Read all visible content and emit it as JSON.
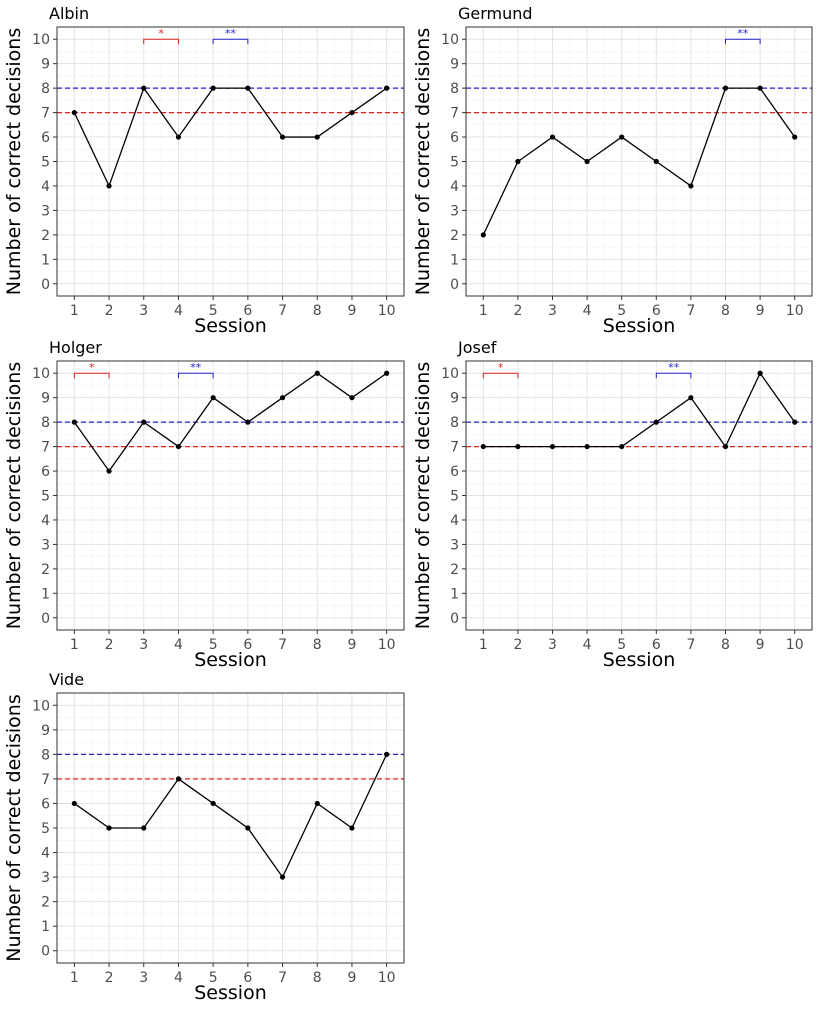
{
  "chart_data": [
    {
      "type": "line",
      "title": "Albin",
      "xlabel": "Session",
      "ylabel": "Number of correct decisions",
      "x": [
        1,
        2,
        3,
        4,
        5,
        6,
        7,
        8,
        9,
        10
      ],
      "values": [
        7,
        4,
        8,
        6,
        8,
        8,
        6,
        6,
        7,
        8
      ],
      "xlim": [
        0.5,
        10.5
      ],
      "ylim": [
        0,
        10
      ],
      "reference_lines": [
        {
          "value": 8,
          "color": "#2222cc"
        },
        {
          "value": 7,
          "color": "#dd2222"
        }
      ],
      "significance": [
        {
          "from": 3,
          "to": 4,
          "label": "*",
          "color": "#dd2222"
        },
        {
          "from": 5,
          "to": 6,
          "label": "**",
          "color": "#2222cc"
        }
      ],
      "grid": true
    },
    {
      "type": "line",
      "title": "Germund",
      "xlabel": "Session",
      "ylabel": "Number of correct decisions",
      "x": [
        1,
        2,
        3,
        4,
        5,
        6,
        7,
        8,
        9,
        10
      ],
      "values": [
        2,
        5,
        6,
        5,
        6,
        5,
        4,
        8,
        8,
        6
      ],
      "xlim": [
        0.5,
        10.5
      ],
      "ylim": [
        0,
        10
      ],
      "reference_lines": [
        {
          "value": 8,
          "color": "#2222cc"
        },
        {
          "value": 7,
          "color": "#dd2222"
        }
      ],
      "significance": [
        {
          "from": 8,
          "to": 9,
          "label": "**",
          "color": "#2222cc"
        }
      ],
      "grid": true
    },
    {
      "type": "line",
      "title": "Holger",
      "xlabel": "Session",
      "ylabel": "Number of correct decisions",
      "x": [
        1,
        2,
        3,
        4,
        5,
        6,
        7,
        8,
        9,
        10
      ],
      "values": [
        8,
        6,
        8,
        7,
        9,
        8,
        9,
        10,
        9,
        10
      ],
      "xlim": [
        0.5,
        10.5
      ],
      "ylim": [
        0,
        10
      ],
      "reference_lines": [
        {
          "value": 8,
          "color": "#2222cc"
        },
        {
          "value": 7,
          "color": "#dd2222"
        }
      ],
      "significance": [
        {
          "from": 1,
          "to": 2,
          "label": "*",
          "color": "#dd2222"
        },
        {
          "from": 4,
          "to": 5,
          "label": "**",
          "color": "#2222cc"
        }
      ],
      "grid": true
    },
    {
      "type": "line",
      "title": "Josef",
      "xlabel": "Session",
      "ylabel": "Number of correct decisions",
      "x": [
        1,
        2,
        3,
        4,
        5,
        6,
        7,
        8,
        9,
        10
      ],
      "values": [
        7,
        7,
        7,
        7,
        7,
        8,
        9,
        7,
        10,
        8
      ],
      "xlim": [
        0.5,
        10.5
      ],
      "ylim": [
        0,
        10
      ],
      "reference_lines": [
        {
          "value": 8,
          "color": "#2222cc"
        },
        {
          "value": 7,
          "color": "#dd2222"
        }
      ],
      "significance": [
        {
          "from": 1,
          "to": 2,
          "label": "*",
          "color": "#dd2222"
        },
        {
          "from": 6,
          "to": 7,
          "label": "**",
          "color": "#2222cc"
        }
      ],
      "grid": true
    },
    {
      "type": "line",
      "title": "Vide",
      "xlabel": "Session",
      "ylabel": "Number of correct decisions",
      "x": [
        1,
        2,
        3,
        4,
        5,
        6,
        7,
        8,
        9,
        10
      ],
      "values": [
        6,
        5,
        5,
        7,
        6,
        5,
        3,
        6,
        5,
        8
      ],
      "xlim": [
        0.5,
        10.5
      ],
      "ylim": [
        0,
        10
      ],
      "reference_lines": [
        {
          "value": 8,
          "color": "#2222cc"
        },
        {
          "value": 7,
          "color": "#dd2222"
        }
      ],
      "significance": [],
      "grid": true
    }
  ]
}
